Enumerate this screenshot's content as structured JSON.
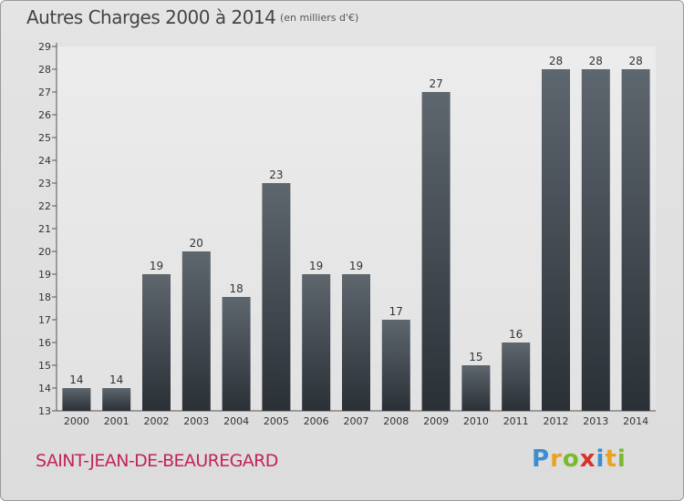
{
  "header": {
    "title": "Autres Charges 2000 à 2014",
    "subtitle": "(en milliers d'€)"
  },
  "footer": {
    "commune": "SAINT-JEAN-DE-BEAUREGARD",
    "logo_letters": [
      "P",
      "r",
      "o",
      "x",
      "i",
      "t",
      "i"
    ],
    "logo_colors": [
      "#3b8fd0",
      "#e8a321",
      "#7ab92e",
      "#d8322f",
      "#3b8fd0",
      "#e8a321",
      "#7ab92e"
    ]
  },
  "chart_data": {
    "type": "bar",
    "categories": [
      "2000",
      "2001",
      "2002",
      "2003",
      "2004",
      "2005",
      "2006",
      "2007",
      "2008",
      "2009",
      "2010",
      "2011",
      "2012",
      "2013",
      "2014"
    ],
    "values": [
      14,
      14,
      19,
      20,
      18,
      23,
      19,
      19,
      17,
      27,
      15,
      16,
      28,
      28,
      28
    ],
    "title": "Autres Charges 2000 à 2014",
    "ylim": [
      13,
      29
    ],
    "yticks": [
      13,
      14,
      15,
      16,
      17,
      18,
      19,
      20,
      21,
      22,
      23,
      24,
      25,
      26,
      27,
      28,
      29
    ],
    "grid": false,
    "bar_color": "#3a4148"
  }
}
